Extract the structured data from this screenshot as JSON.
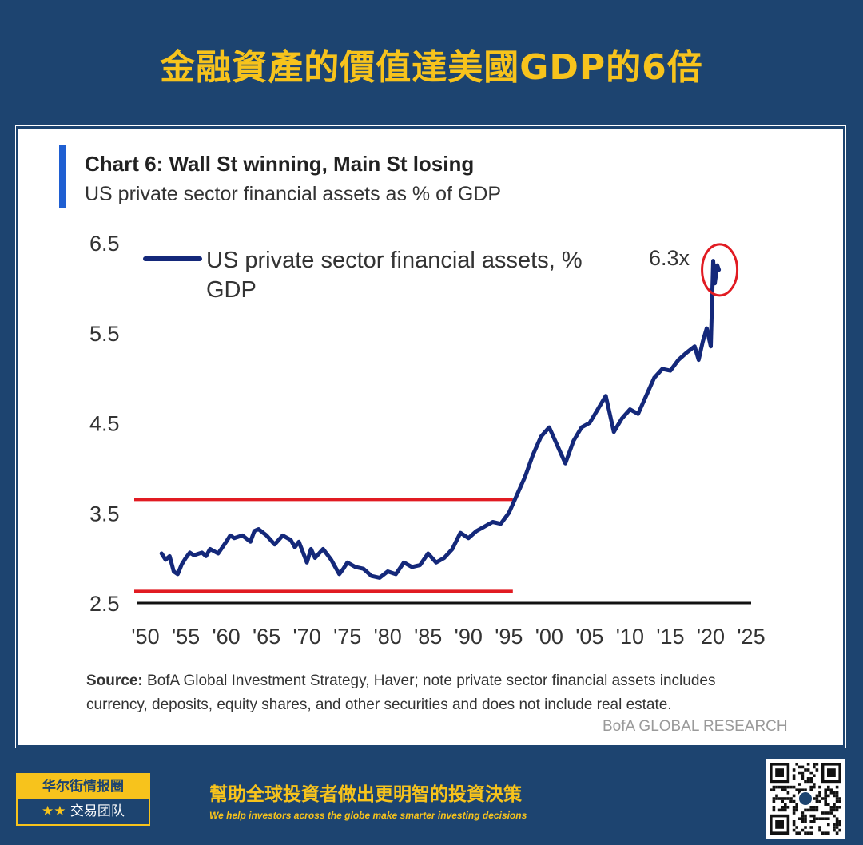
{
  "banner": {
    "title": "金融資產的價值達美國GDP的6倍"
  },
  "chart_data": {
    "type": "line",
    "title": "Chart 6: Wall St winning, Main St losing",
    "subtitle": "US private sector financial assets as % of GDP",
    "legend": "US private sector financial assets, % GDP",
    "legend_line1": "US private sector financial assets, %",
    "legend_line2": "GDP",
    "annotation": "6.3x",
    "ylim": [
      2.5,
      6.5
    ],
    "xlim": [
      1950,
      2025
    ],
    "y_ticks": [
      "6.5",
      "5.5",
      "4.5",
      "3.5",
      "2.5"
    ],
    "y_tick_values": [
      6.5,
      5.5,
      4.5,
      3.5,
      2.5
    ],
    "x_ticks": [
      "'50",
      "'55",
      "'60",
      "'65",
      "'70",
      "'75",
      "'80",
      "'85",
      "'90",
      "'95",
      "'00",
      "'05",
      "'10",
      "'15",
      "'20",
      "'25"
    ],
    "x_tick_values": [
      1950,
      1955,
      1960,
      1965,
      1970,
      1975,
      1980,
      1985,
      1990,
      1995,
      2000,
      2005,
      2010,
      2015,
      2020,
      2025
    ],
    "reference_lines": [
      {
        "y": 3.65,
        "x_from": 1950,
        "x_to": 1995,
        "color": "#e11b22"
      },
      {
        "y": 2.63,
        "x_from": 1950,
        "x_to": 1995,
        "color": "#e11b22"
      }
    ],
    "series": [
      {
        "color": "#14287a",
        "x": [
          1952,
          1952.5,
          1953,
          1953.5,
          1954,
          1954.5,
          1955,
          1955.5,
          1956,
          1957,
          1957.5,
          1958,
          1959,
          1960,
          1960.5,
          1961,
          1962,
          1963,
          1963.5,
          1964,
          1965,
          1966,
          1967,
          1968,
          1968.5,
          1969,
          1970,
          1970.5,
          1971,
          1972,
          1973,
          1973.5,
          1974,
          1974.5,
          1975,
          1976,
          1977,
          1978,
          1979,
          1980,
          1981,
          1982,
          1983,
          1984,
          1985,
          1986,
          1987,
          1988,
          1989,
          1990,
          1991,
          1992,
          1993,
          1994,
          1995,
          1996,
          1997,
          1998,
          1999,
          2000,
          2001,
          2002,
          2003,
          2004,
          2005,
          2006,
          2007,
          2008,
          2009,
          2010,
          2011,
          2012,
          2013,
          2014,
          2015,
          2016,
          2017,
          2018,
          2018.5,
          2019,
          2019.5,
          2020,
          2020.3,
          2020.5,
          2020.8,
          2021
        ],
        "y": [
          3.05,
          2.98,
          3.02,
          2.85,
          2.82,
          2.93,
          3.0,
          3.06,
          3.03,
          3.06,
          3.02,
          3.1,
          3.05,
          3.18,
          3.25,
          3.22,
          3.25,
          3.18,
          3.3,
          3.32,
          3.25,
          3.15,
          3.25,
          3.2,
          3.12,
          3.18,
          2.95,
          3.1,
          3.0,
          3.1,
          2.98,
          2.9,
          2.82,
          2.88,
          2.95,
          2.9,
          2.88,
          2.8,
          2.78,
          2.85,
          2.82,
          2.95,
          2.9,
          2.92,
          3.05,
          2.95,
          3.0,
          3.1,
          3.28,
          3.22,
          3.3,
          3.35,
          3.4,
          3.38,
          3.5,
          3.7,
          3.9,
          4.15,
          4.35,
          4.45,
          4.25,
          4.05,
          4.3,
          4.45,
          4.5,
          4.65,
          4.8,
          4.4,
          4.55,
          4.65,
          4.6,
          4.8,
          5.0,
          5.1,
          5.08,
          5.2,
          5.28,
          5.35,
          5.2,
          5.4,
          5.55,
          5.35,
          6.3,
          6.05,
          6.25,
          6.2
        ]
      }
    ]
  },
  "source": {
    "label": "Source:",
    "text": " BofA Global Investment Strategy, Haver; note private sector financial assets includes currency, deposits,  equity shares, and other securities and does not include  real estate."
  },
  "credit": "BofA GLOBAL RESEARCH",
  "footer": {
    "brand_top": "华尔街情报圈",
    "brand_stars": "★★",
    "brand_bottom": " 交易团队",
    "slogan_cn": "幫助全球投資者做出更明智的投資決策",
    "slogan_en": "We help investors across the globe make smarter investing decisions"
  }
}
